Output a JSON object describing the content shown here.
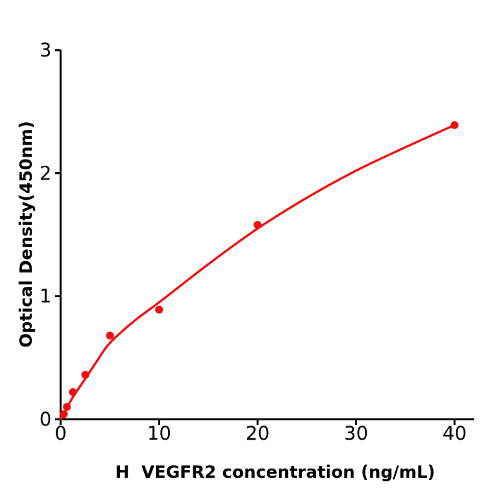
{
  "chart_data": {
    "type": "scatter",
    "title": "",
    "xlabel": "H  VEGFR2 concentration (ng/mL)",
    "ylabel": "Optical Density(450nm)",
    "xlim": [
      0,
      42
    ],
    "ylim": [
      0,
      3
    ],
    "x_ticks": [
      0,
      10,
      20,
      30,
      40
    ],
    "y_ticks": [
      0,
      1,
      2,
      3
    ],
    "grid": false,
    "legend": false,
    "colors": {
      "point": "#ee1111",
      "curve": "#ee1111",
      "axis": "#000000",
      "background": "#ffffff"
    },
    "series": [
      {
        "name": "standard-points",
        "type": "scatter",
        "x": [
          0.31,
          0.63,
          1.25,
          2.5,
          5,
          10,
          20,
          40
        ],
        "y": [
          0.04,
          0.1,
          0.22,
          0.36,
          0.68,
          0.89,
          1.58,
          2.39
        ]
      },
      {
        "name": "fitted-curve",
        "type": "line",
        "x": [
          0,
          0.31,
          0.63,
          1.25,
          2.5,
          3.75,
          5,
          7.5,
          10,
          15,
          20,
          25,
          30,
          35,
          40
        ],
        "y": [
          0.0,
          0.04,
          0.09,
          0.18,
          0.33,
          0.48,
          0.62,
          0.8,
          0.95,
          1.26,
          1.55,
          1.8,
          2.02,
          2.21,
          2.39
        ]
      }
    ]
  }
}
